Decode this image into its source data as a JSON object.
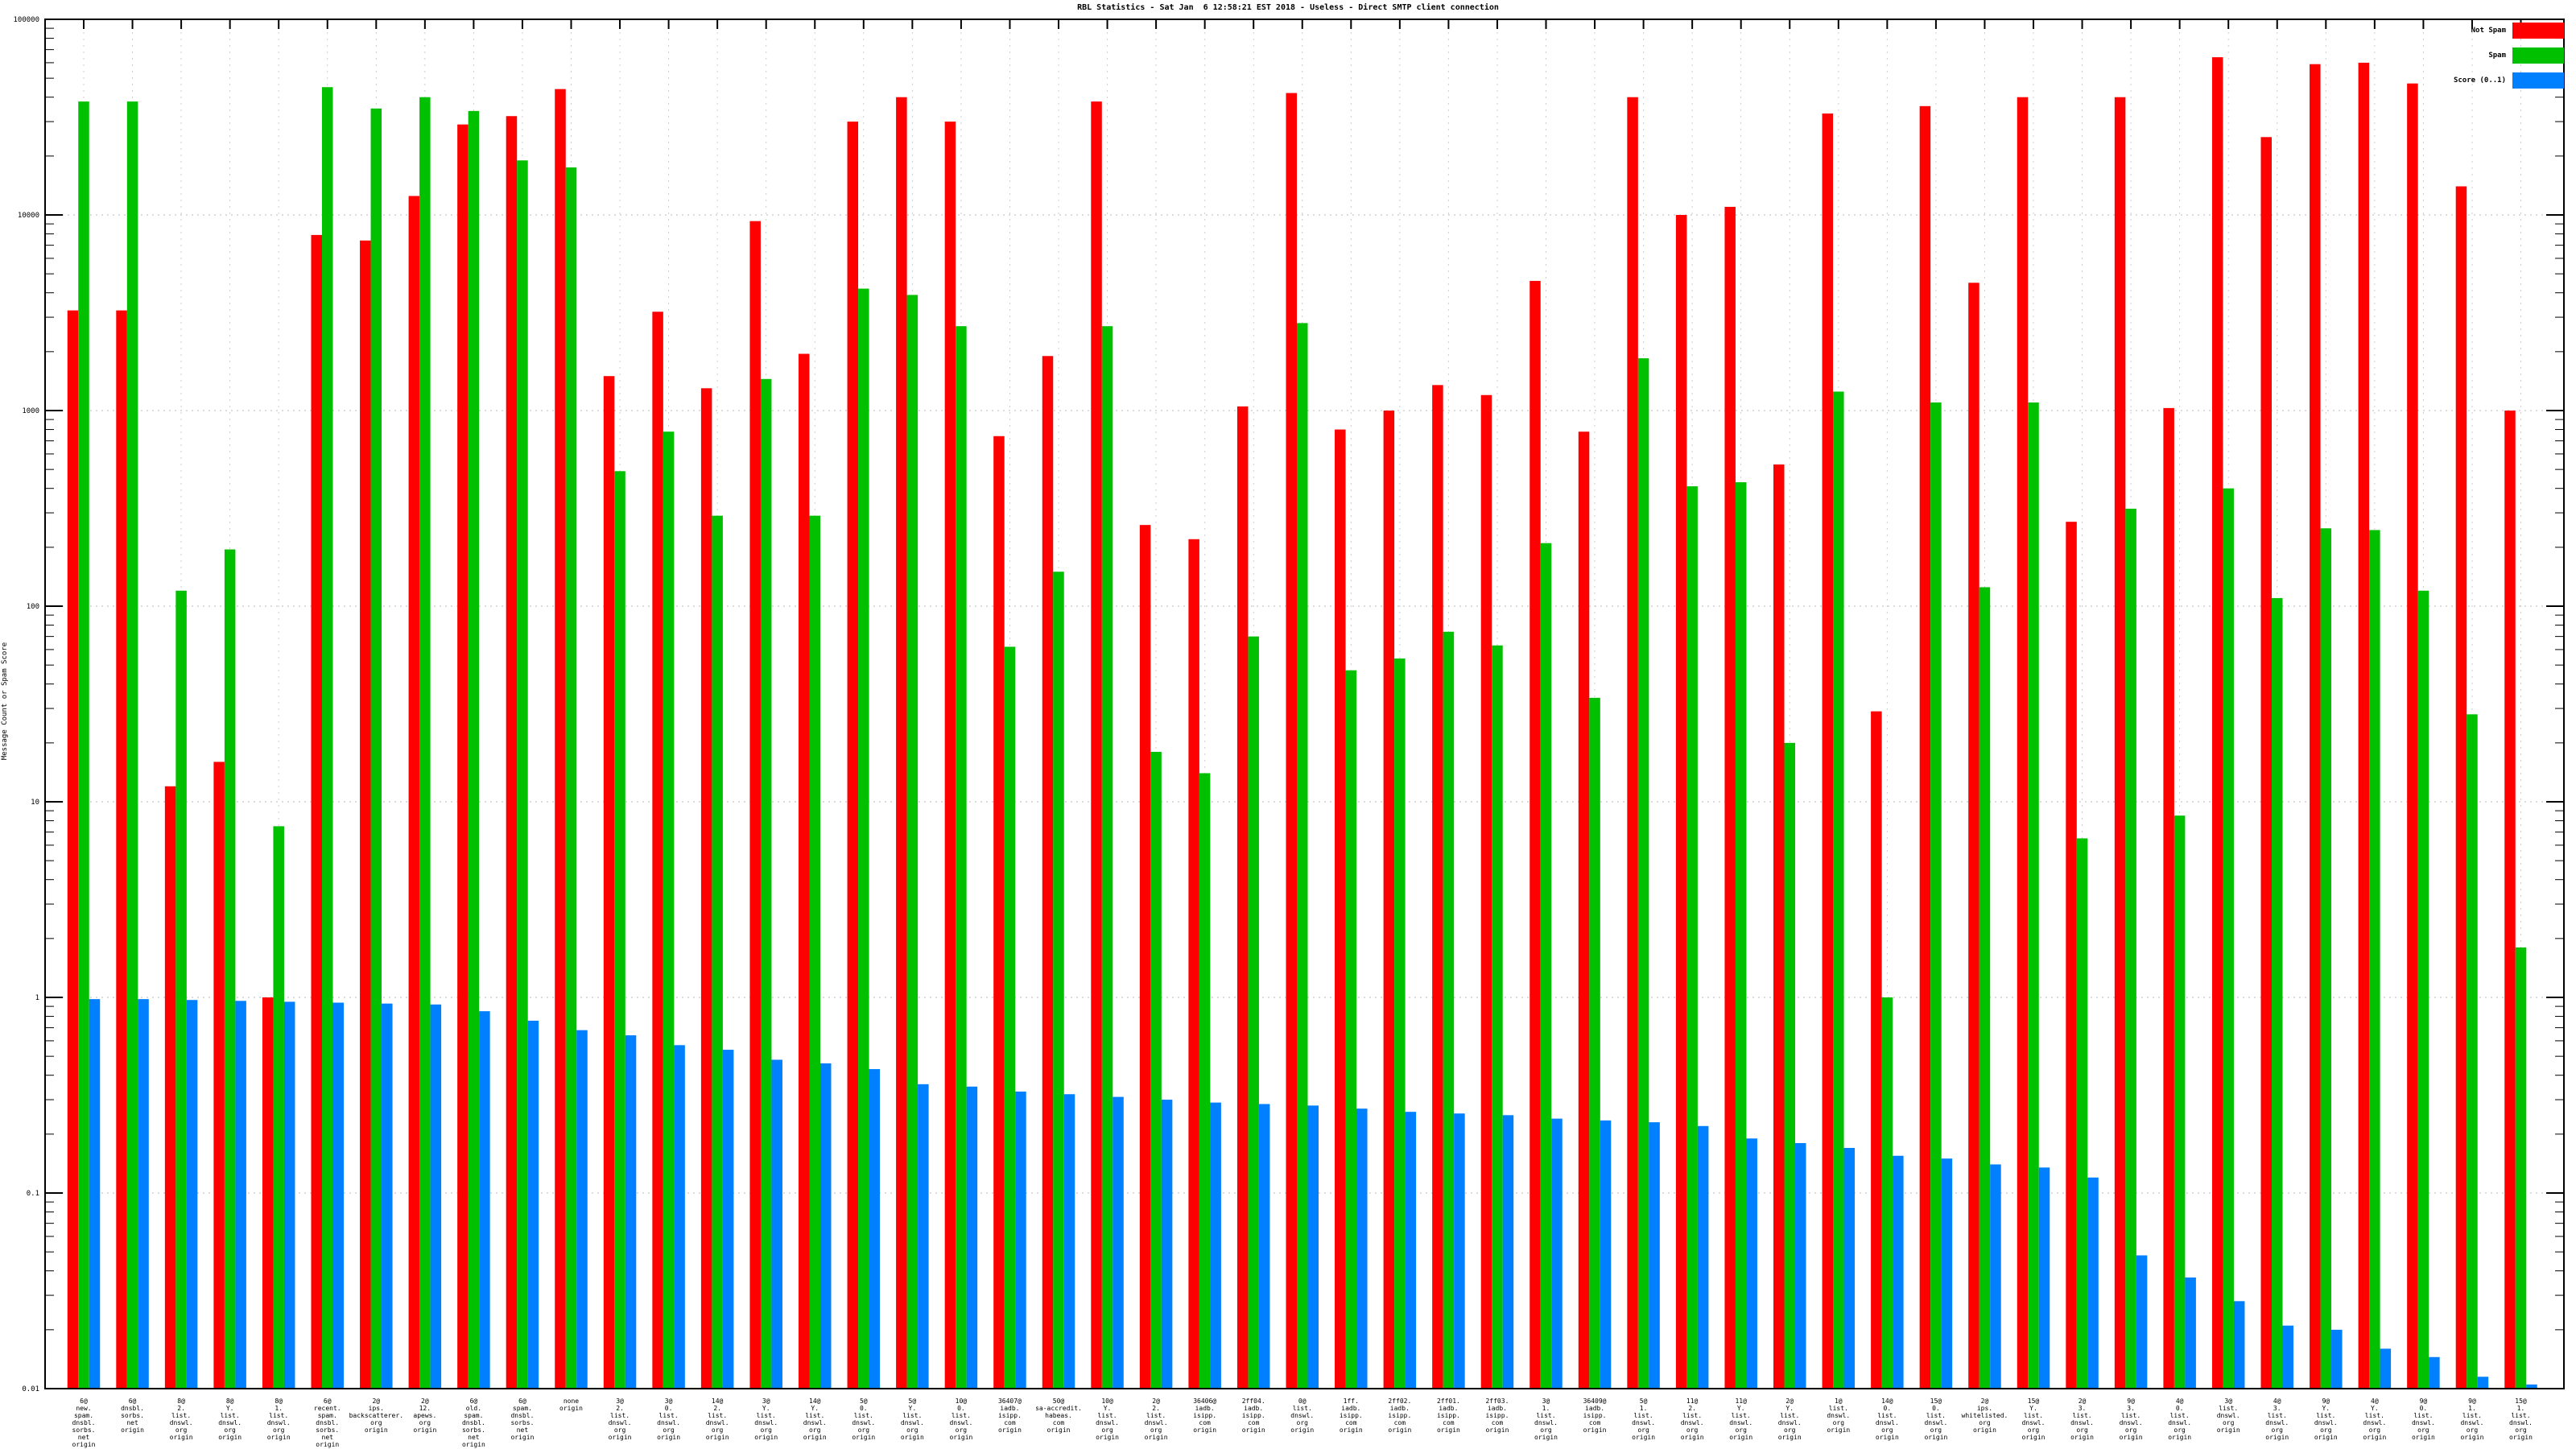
{
  "title": "RBL Statistics - Sat Jan  6 12:58:21 EST 2018 - Useless - Direct SMTP client connection",
  "ylabel": "Message Count or Spam Score",
  "legend": {
    "not_spam_label": "Not Spam",
    "spam_label": "Spam",
    "score_label": "Score (0..1)"
  },
  "colors": {
    "not_spam": "#ff0000",
    "spam": "#00c000",
    "score": "#0080ff",
    "grid": "#b8b8b8",
    "axis": "#000000"
  },
  "chart_data": {
    "type": "bar",
    "y_scale": "log",
    "ylim": [
      0.01,
      100000
    ],
    "ytick_labels": [
      "100000",
      "10000",
      "1000",
      "100",
      "10",
      "1",
      "0.1",
      "0.01"
    ],
    "grid": "dotted",
    "legend_position": "top-right",
    "title": "RBL Statistics - Sat Jan  6 12:58:21 EST 2018 - Useless - Direct SMTP client connection",
    "xlabel": "",
    "ylabel": "Message Count or Spam Score",
    "categories": [
      [
        "6@",
        "new.",
        "spam.",
        "dnsbl.",
        "sorbs.",
        "net",
        "origin"
      ],
      [
        "6@",
        "dnsbl.",
        "sorbs.",
        "net",
        "origin"
      ],
      [
        "8@",
        "2.",
        "list.",
        "dnswl.",
        "org",
        "origin"
      ],
      [
        "8@",
        "Y.",
        "list.",
        "dnswl.",
        "org",
        "origin"
      ],
      [
        "8@",
        "1.",
        "list.",
        "dnswl.",
        "org",
        "origin"
      ],
      [
        "6@",
        "recent.",
        "spam.",
        "dnsbl.",
        "sorbs.",
        "net",
        "origin"
      ],
      [
        "2@",
        "ips.",
        "backscatterer.",
        "org",
        "origin"
      ],
      [
        "2@",
        "12.",
        "apews.",
        "org",
        "origin"
      ],
      [
        "6@",
        "old.",
        "spam.",
        "dnsbl.",
        "sorbs.",
        "net",
        "origin"
      ],
      [
        "6@",
        "spam.",
        "dnsbl.",
        "sorbs.",
        "net",
        "origin"
      ],
      [
        "none",
        "origin"
      ],
      [
        "3@",
        "2.",
        "list.",
        "dnswl.",
        "org",
        "origin"
      ],
      [
        "3@",
        "0.",
        "list.",
        "dnswl.",
        "org",
        "origin"
      ],
      [
        "14@",
        "2.",
        "list.",
        "dnswl.",
        "org",
        "origin"
      ],
      [
        "3@",
        "Y.",
        "list.",
        "dnswl.",
        "org",
        "origin"
      ],
      [
        "14@",
        "Y.",
        "list.",
        "dnswl.",
        "org",
        "origin"
      ],
      [
        "5@",
        "0.",
        "list.",
        "dnswl.",
        "org",
        "origin"
      ],
      [
        "5@",
        "Y.",
        "list.",
        "dnswl.",
        "org",
        "origin"
      ],
      [
        "10@",
        "0.",
        "list.",
        "dnswl.",
        "org",
        "origin"
      ],
      [
        "36407@",
        "iadb.",
        "isipp.",
        "com",
        "origin"
      ],
      [
        "50@",
        "sa-accredit.",
        "habeas.",
        "com",
        "origin"
      ],
      [
        "10@",
        "Y.",
        "list.",
        "dnswl.",
        "org",
        "origin"
      ],
      [
        "2@",
        "2.",
        "list.",
        "dnswl.",
        "org",
        "origin"
      ],
      [
        "36406@",
        "iadb.",
        "isipp.",
        "com",
        "origin"
      ],
      [
        "2ff04.",
        "iadb.",
        "isipp.",
        "com",
        "origin"
      ],
      [
        "0@",
        "list.",
        "dnswl.",
        "org",
        "origin"
      ],
      [
        "1ff.",
        "iadb.",
        "isipp.",
        "com",
        "origin"
      ],
      [
        "2ff02.",
        "iadb.",
        "isipp.",
        "com",
        "origin"
      ],
      [
        "2ff01.",
        "iadb.",
        "isipp.",
        "com",
        "origin"
      ],
      [
        "2ff03.",
        "iadb.",
        "isipp.",
        "com",
        "origin"
      ],
      [
        "3@",
        "1.",
        "list.",
        "dnswl.",
        "org",
        "origin"
      ],
      [
        "36409@",
        "iadb.",
        "isipp.",
        "com",
        "origin"
      ],
      [
        "5@",
        "1.",
        "list.",
        "dnswl.",
        "org",
        "origin"
      ],
      [
        "11@",
        "2.",
        "list.",
        "dnswl.",
        "org",
        "origin"
      ],
      [
        "11@",
        "Y.",
        "list.",
        "dnswl.",
        "org",
        "origin"
      ],
      [
        "2@",
        "Y.",
        "list.",
        "dnswl.",
        "org",
        "origin"
      ],
      [
        "1@",
        "list.",
        "dnswl.",
        "org",
        "origin"
      ],
      [
        "14@",
        "0.",
        "list.",
        "dnswl.",
        "org",
        "origin"
      ],
      [
        "15@",
        "0.",
        "list.",
        "dnswl.",
        "org",
        "origin"
      ],
      [
        "2@",
        "ips.",
        "whitelisted.",
        "org",
        "origin"
      ],
      [
        "15@",
        "Y.",
        "list.",
        "dnswl.",
        "org",
        "origin"
      ],
      [
        "2@",
        "3.",
        "list.",
        "dnswl.",
        "org",
        "origin"
      ],
      [
        "9@",
        "3.",
        "list.",
        "dnswl.",
        "org",
        "origin"
      ],
      [
        "4@",
        "0.",
        "list.",
        "dnswl.",
        "org",
        "origin"
      ],
      [
        "3@",
        "list.",
        "dnswl.",
        "org",
        "origin"
      ],
      [
        "4@",
        "3.",
        "list.",
        "dnswl.",
        "org",
        "origin"
      ],
      [
        "9@",
        "Y.",
        "list.",
        "dnswl.",
        "org",
        "origin"
      ],
      [
        "4@",
        "Y.",
        "list.",
        "dnswl.",
        "org",
        "origin"
      ],
      [
        "9@",
        "0.",
        "list.",
        "dnswl.",
        "org",
        "origin"
      ],
      [
        "9@",
        "1.",
        "list.",
        "dnswl.",
        "org",
        "origin"
      ],
      [
        "15@",
        "1.",
        "list.",
        "dnswl.",
        "org",
        "origin"
      ]
    ],
    "series": [
      {
        "name": "Not Spam",
        "color": "#ff0000",
        "values": [
          3250,
          3250,
          12,
          16,
          1,
          7900,
          7400,
          12500,
          29000,
          32000,
          44000,
          1500,
          3200,
          1300,
          9300,
          1950,
          30000,
          40000,
          30000,
          740,
          1900,
          38000,
          260,
          220,
          1050,
          42000,
          800,
          1000,
          1350,
          1200,
          4600,
          780,
          40000,
          10000,
          11000,
          530,
          33000,
          29,
          36000,
          4500,
          40000,
          270,
          40000,
          1030,
          64000,
          25000,
          59000,
          60000,
          47000,
          14000,
          1000
        ]
      },
      {
        "name": "Spam",
        "color": "#00c000",
        "values": [
          38000,
          38000,
          120,
          195,
          7.5,
          45000,
          35000,
          40000,
          34000,
          19000,
          17500,
          490,
          780,
          290,
          1450,
          290,
          4200,
          3900,
          2700,
          62,
          150,
          2700,
          18,
          14,
          70,
          2800,
          47,
          54,
          74,
          63,
          210,
          34,
          1850,
          410,
          430,
          20,
          1250,
          1,
          1100,
          125,
          1100,
          6.5,
          315,
          8.5,
          400,
          110,
          250,
          245,
          120,
          28,
          1.8
        ]
      },
      {
        "name": "Score (0..1)",
        "color": "#0080ff",
        "values": [
          0.98,
          0.98,
          0.97,
          0.96,
          0.95,
          0.94,
          0.93,
          0.92,
          0.85,
          0.76,
          0.68,
          0.64,
          0.57,
          0.54,
          0.48,
          0.46,
          0.43,
          0.36,
          0.35,
          0.33,
          0.32,
          0.31,
          0.3,
          0.29,
          0.285,
          0.28,
          0.27,
          0.26,
          0.255,
          0.25,
          0.24,
          0.235,
          0.23,
          0.22,
          0.19,
          0.18,
          0.17,
          0.155,
          0.15,
          0.14,
          0.135,
          0.12,
          0.048,
          0.037,
          0.028,
          0.021,
          0.02,
          0.016,
          0.0145,
          0.0115,
          0.0105
        ]
      }
    ]
  }
}
